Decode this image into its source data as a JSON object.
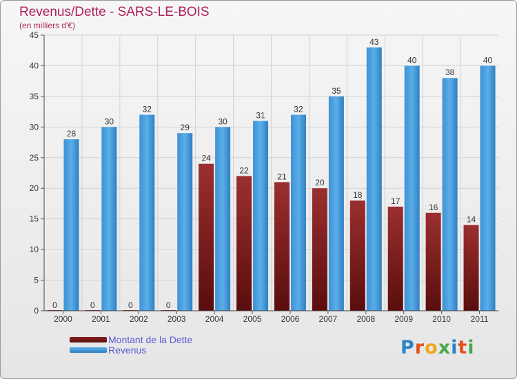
{
  "chart_data": {
    "type": "bar",
    "title": "Revenus/Dette - SARS-LE-BOIS",
    "subtitle": "(en milliers d'€)",
    "categories": [
      "2000",
      "2001",
      "2002",
      "2003",
      "2004",
      "2005",
      "2006",
      "2007",
      "2008",
      "2009",
      "2010",
      "2011"
    ],
    "series": [
      {
        "name": "Montant de la Dette",
        "values": [
          0,
          0,
          0,
          0,
          24,
          22,
          21,
          20,
          18,
          17,
          16,
          14
        ],
        "color": "#8a1f1f"
      },
      {
        "name": "Revenus",
        "values": [
          28,
          30,
          32,
          29,
          30,
          31,
          32,
          35,
          43,
          40,
          38,
          40
        ],
        "color": "#4aa0e0"
      }
    ],
    "ylim": [
      0,
      45
    ],
    "yticks": [
      0,
      5,
      10,
      15,
      20,
      25,
      30,
      35,
      40,
      45
    ],
    "grid": true,
    "legend_position": "bottom-left"
  },
  "brand": {
    "letters": [
      "P",
      "r",
      "o",
      "x",
      "i",
      "t",
      "i"
    ]
  }
}
